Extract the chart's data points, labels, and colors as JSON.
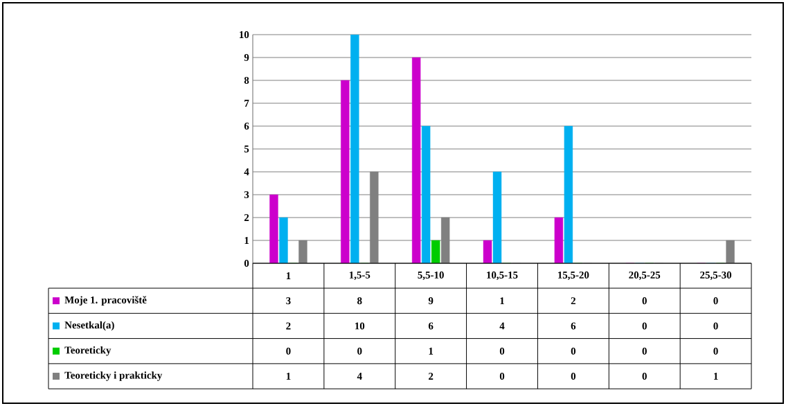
{
  "chart_data": {
    "type": "bar",
    "categories": [
      "1",
      "1,5-5",
      "5,5-10",
      "10,5-15",
      "15,5-20",
      "20,5-25",
      "25,5-30"
    ],
    "series": [
      {
        "name": "Moje 1. pracoviště",
        "color": "#cc00cc",
        "values": [
          3,
          8,
          9,
          1,
          2,
          0,
          0
        ]
      },
      {
        "name": "Nesetkal(a)",
        "color": "#00b0f0",
        "values": [
          2,
          10,
          6,
          4,
          6,
          0,
          0
        ]
      },
      {
        "name": "Teoreticky",
        "color": "#00cc00",
        "values": [
          0,
          0,
          1,
          0,
          0,
          0,
          0
        ]
      },
      {
        "name": "Teoreticky i prakticky",
        "color": "#808080",
        "values": [
          1,
          4,
          2,
          0,
          0,
          0,
          1
        ]
      }
    ],
    "ylim": [
      0,
      10
    ],
    "yticks": [
      0,
      1,
      2,
      3,
      4,
      5,
      6,
      7,
      8,
      9,
      10
    ],
    "grid": "y",
    "legend": "bottom",
    "data_labels": true
  }
}
